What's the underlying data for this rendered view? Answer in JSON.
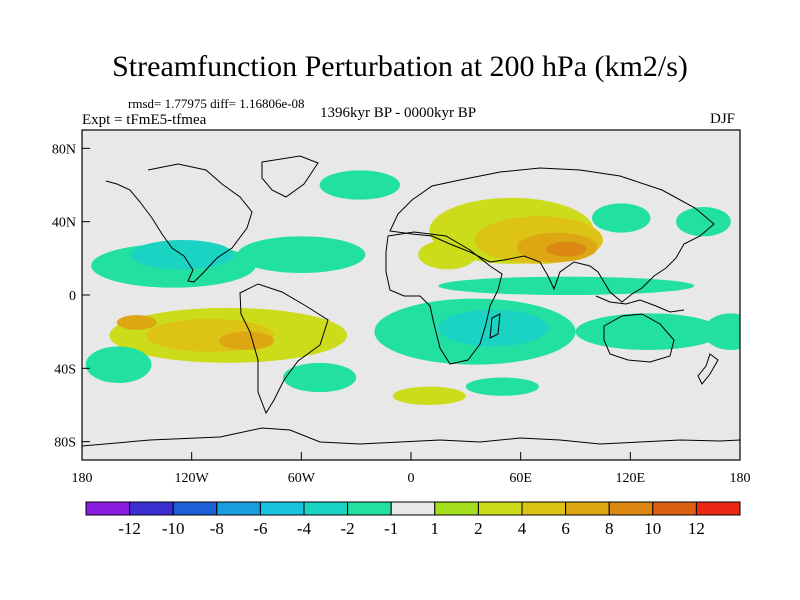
{
  "chart_data": {
    "type": "heatmap",
    "title": "Streamfunction Perturbation at 200 hPa (km2/s)",
    "stats_label": "rmsd= 1.77975 diff= 1.16806e-08",
    "left_label": "Expt = tFmE5-tfmea",
    "center_label": "1396kyr BP - 0000kyr BP",
    "right_label": "DJF",
    "x_range": [
      -180,
      180
    ],
    "y_range": [
      -90,
      90
    ],
    "x_ticks": [
      {
        "value": -180,
        "label": "180"
      },
      {
        "value": -120,
        "label": "120W"
      },
      {
        "value": -60,
        "label": "60W"
      },
      {
        "value": 0,
        "label": "0"
      },
      {
        "value": 60,
        "label": "60E"
      },
      {
        "value": 120,
        "label": "120E"
      },
      {
        "value": 180,
        "label": "180"
      }
    ],
    "y_ticks": [
      {
        "value": 80,
        "label": "80N"
      },
      {
        "value": 40,
        "label": "40N"
      },
      {
        "value": 0,
        "label": "0"
      },
      {
        "value": -40,
        "label": "40S"
      },
      {
        "value": -80,
        "label": "80S"
      }
    ],
    "colorbar": {
      "colors": [
        "#8a1be0",
        "#3a2ed2",
        "#1e5fd8",
        "#1a9ee0",
        "#19c3e0",
        "#1ad3c3",
        "#22e0a2",
        "#e8e8e8",
        "#a5de1c",
        "#cddc1a",
        "#dcc315",
        "#dca713",
        "#db8712",
        "#dd5f12",
        "#ea2814"
      ],
      "labels": [
        "-12",
        "-10",
        "-8",
        "-6",
        "-4",
        "-2",
        "-1",
        "1",
        "2",
        "4",
        "6",
        "8",
        "10",
        "12"
      ]
    },
    "anomalies": [
      {
        "lon": -130,
        "lat": 16,
        "rx": 45,
        "ry": 12,
        "level": -2
      },
      {
        "lon": -125,
        "lat": 22,
        "rx": 28,
        "ry": 8,
        "level": -4
      },
      {
        "lon": -60,
        "lat": 22,
        "rx": 35,
        "ry": 10,
        "level": -2
      },
      {
        "lon": -28,
        "lat": 60,
        "rx": 22,
        "ry": 8,
        "level": -2
      },
      {
        "lon": 55,
        "lat": 35,
        "rx": 45,
        "ry": 18,
        "level": 2
      },
      {
        "lon": 70,
        "lat": 30,
        "rx": 35,
        "ry": 13,
        "level": 4
      },
      {
        "lon": 80,
        "lat": 26,
        "rx": 22,
        "ry": 8,
        "level": 6
      },
      {
        "lon": 85,
        "lat": 25,
        "rx": 11,
        "ry": 4,
        "level": 8
      },
      {
        "lon": 20,
        "lat": 22,
        "rx": 16,
        "ry": 8,
        "level": 2
      },
      {
        "lon": 85,
        "lat": 5,
        "rx": 70,
        "ry": 5,
        "level": -2
      },
      {
        "lon": 115,
        "lat": 42,
        "rx": 16,
        "ry": 8,
        "level": -2
      },
      {
        "lon": 160,
        "lat": 40,
        "rx": 15,
        "ry": 8,
        "level": -2
      },
      {
        "lon": -100,
        "lat": -22,
        "rx": 65,
        "ry": 15,
        "level": 2
      },
      {
        "lon": -110,
        "lat": -22,
        "rx": 35,
        "ry": 9,
        "level": 4
      },
      {
        "lon": -90,
        "lat": -25,
        "rx": 15,
        "ry": 5,
        "level": 6
      },
      {
        "lon": -150,
        "lat": -15,
        "rx": 11,
        "ry": 4,
        "level": 6
      },
      {
        "lon": -160,
        "lat": -38,
        "rx": 18,
        "ry": 10,
        "level": -2
      },
      {
        "lon": -50,
        "lat": -45,
        "rx": 20,
        "ry": 8,
        "level": -2
      },
      {
        "lon": 35,
        "lat": -20,
        "rx": 55,
        "ry": 18,
        "level": -2
      },
      {
        "lon": 45,
        "lat": -18,
        "rx": 30,
        "ry": 10,
        "level": -4
      },
      {
        "lon": 130,
        "lat": -20,
        "rx": 40,
        "ry": 10,
        "level": -2
      },
      {
        "lon": 175,
        "lat": -20,
        "rx": 15,
        "ry": 10,
        "level": -2
      },
      {
        "lon": 10,
        "lat": -55,
        "rx": 20,
        "ry": 5,
        "level": 2
      },
      {
        "lon": 50,
        "lat": -50,
        "rx": 20,
        "ry": 5,
        "level": -2
      }
    ]
  }
}
